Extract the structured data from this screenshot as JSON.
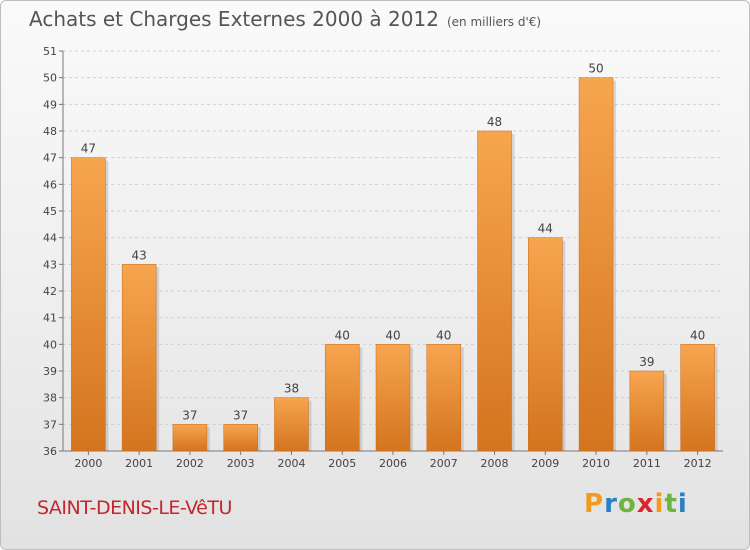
{
  "header": {
    "title": "Achats et Charges Externes 2000 à 2012",
    "subtitle": "(en milliers d'€)"
  },
  "footer": {
    "commune": "SAINT-DENIS-LE-VêTU",
    "logo_text": "Proxiti"
  },
  "colors": {
    "bar_top": "#f7a54f",
    "bar_bottom": "#d4741f",
    "title_text": "#555555",
    "commune_text": "#c1272d"
  },
  "chart_data": {
    "type": "bar",
    "title": "Achats et Charges Externes 2000 à 2012",
    "subtitle": "(en milliers d'€)",
    "categories": [
      "2000",
      "2001",
      "2002",
      "2003",
      "2004",
      "2005",
      "2006",
      "2007",
      "2008",
      "2009",
      "2010",
      "2011",
      "2012"
    ],
    "values": [
      47,
      43,
      37,
      37,
      38,
      40,
      40,
      40,
      48,
      44,
      50,
      39,
      40
    ],
    "ylim": [
      36,
      51
    ],
    "yticks": [
      36,
      37,
      38,
      39,
      40,
      41,
      42,
      43,
      44,
      45,
      46,
      47,
      48,
      49,
      50,
      51
    ],
    "grid": true,
    "data_labels": true
  }
}
